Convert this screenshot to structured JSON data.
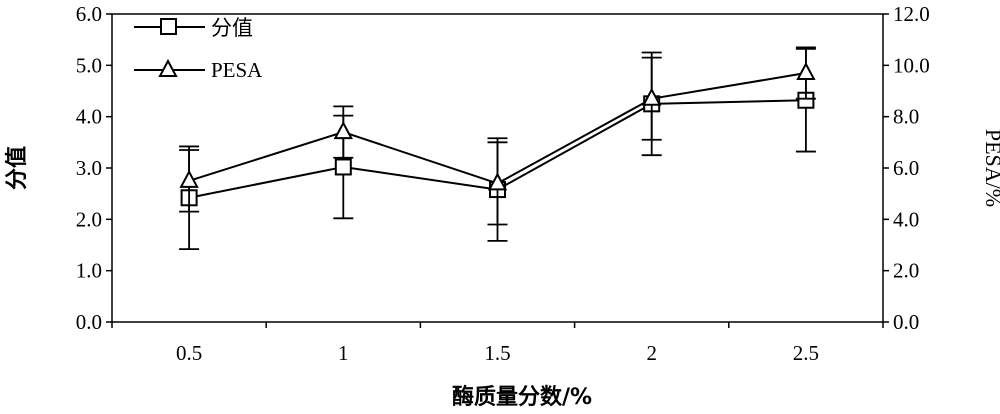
{
  "chart_data": {
    "type": "line",
    "x_categories": [
      "0.5",
      "1",
      "1.5",
      "2",
      "2.5"
    ],
    "xlabel": "酶质量分数/%",
    "ylabel_left": "分值",
    "ylabel_right": "PESA/%",
    "ylim_left": [
      0,
      6
    ],
    "ylim_right": [
      0,
      12
    ],
    "yticks_left": [
      "0.0",
      "1.0",
      "2.0",
      "3.0",
      "4.0",
      "5.0",
      "6.0"
    ],
    "yticks_right": [
      "0.0",
      "2.0",
      "4.0",
      "6.0",
      "8.0",
      "10.0",
      "12.0"
    ],
    "legend_position": "top-left",
    "series": [
      {
        "name": "分值",
        "axis": "left",
        "marker": "square",
        "values": [
          2.42,
          3.02,
          2.58,
          4.25,
          4.32
        ],
        "error": [
          1.0,
          1.0,
          1.0,
          1.0,
          1.0
        ]
      },
      {
        "name": "PESA",
        "axis": "right",
        "marker": "triangle",
        "values": [
          5.5,
          7.4,
          5.4,
          8.7,
          9.7
        ],
        "error": [
          1.2,
          1.0,
          1.6,
          1.6,
          1.0
        ]
      }
    ]
  }
}
